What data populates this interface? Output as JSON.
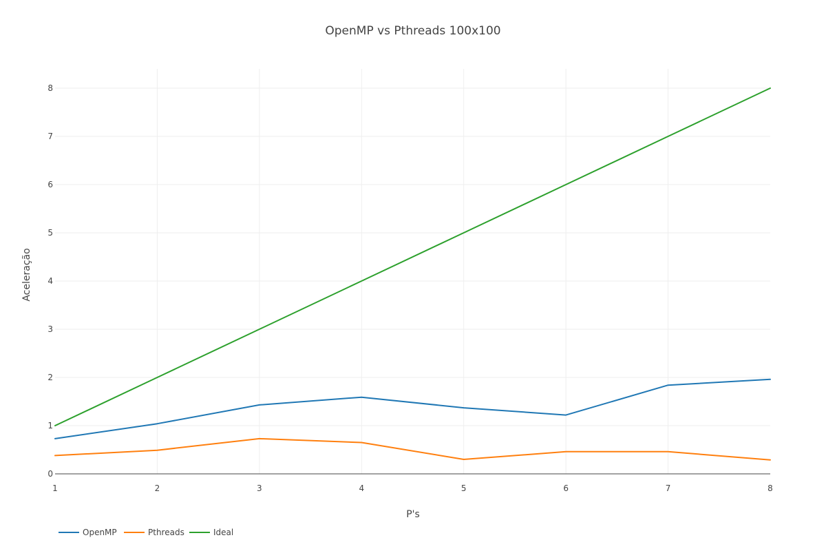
{
  "chart_data": {
    "type": "line",
    "title": "OpenMP vs Pthreads 100x100",
    "xlabel": "P's",
    "ylabel": "Aceleração",
    "x": [
      1,
      2,
      3,
      4,
      5,
      6,
      7,
      8
    ],
    "xlim": [
      1,
      8
    ],
    "ylim": [
      0,
      8.4
    ],
    "xticks": [
      "1",
      "2",
      "3",
      "4",
      "5",
      "6",
      "7",
      "8"
    ],
    "yticks": [
      "0",
      "1",
      "2",
      "3",
      "4",
      "5",
      "6",
      "7",
      "8"
    ],
    "grid": true,
    "legend_position": "bottom-left",
    "series": [
      {
        "name": "OpenMP",
        "color": "#1f77b4",
        "values": [
          0.73,
          1.04,
          1.43,
          1.59,
          1.37,
          1.22,
          1.84,
          1.96
        ]
      },
      {
        "name": "Pthreads",
        "color": "#ff7f0e",
        "values": [
          0.38,
          0.49,
          0.73,
          0.65,
          0.3,
          0.46,
          0.46,
          0.29
        ]
      },
      {
        "name": "Ideal",
        "color": "#2ca02c",
        "values": [
          1,
          2,
          3,
          4,
          5,
          6,
          7,
          8
        ]
      }
    ]
  }
}
